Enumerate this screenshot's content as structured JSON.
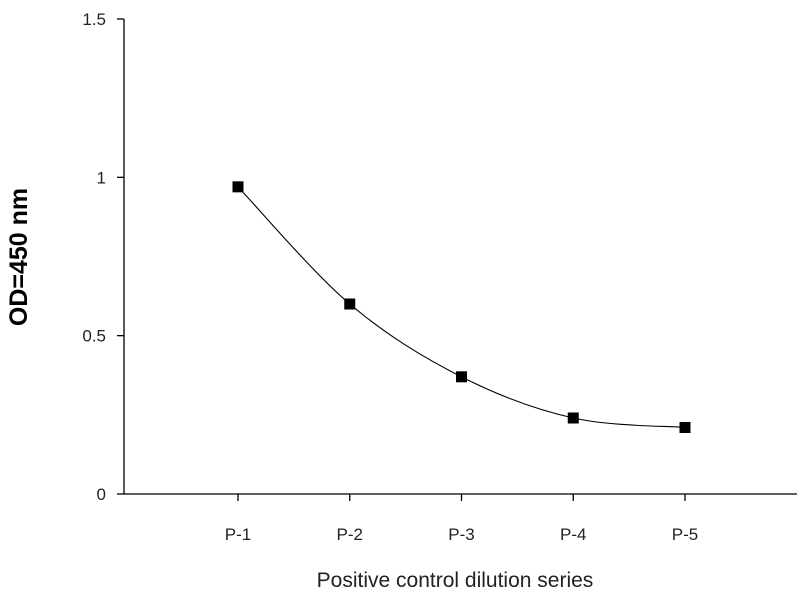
{
  "chart_data": {
    "type": "line",
    "title": "",
    "xlabel": "Positive control dilution series",
    "ylabel": "OD=450 nm",
    "categories": [
      "P-1",
      "P-2",
      "P-3",
      "P-4",
      "P-5"
    ],
    "series": [
      {
        "values": [
          0.97,
          0.6,
          0.37,
          0.24,
          0.21
        ],
        "marker": "square",
        "smooth": true
      }
    ],
    "y_ticks": [
      "0",
      "0.5",
      "1",
      "1.5"
    ],
    "ylim": [
      0,
      1.5
    ],
    "grid": false,
    "legend": "none",
    "colors": {
      "line": "#000000",
      "marker": "#000000",
      "axis": "#000000",
      "text": "#222222"
    }
  }
}
